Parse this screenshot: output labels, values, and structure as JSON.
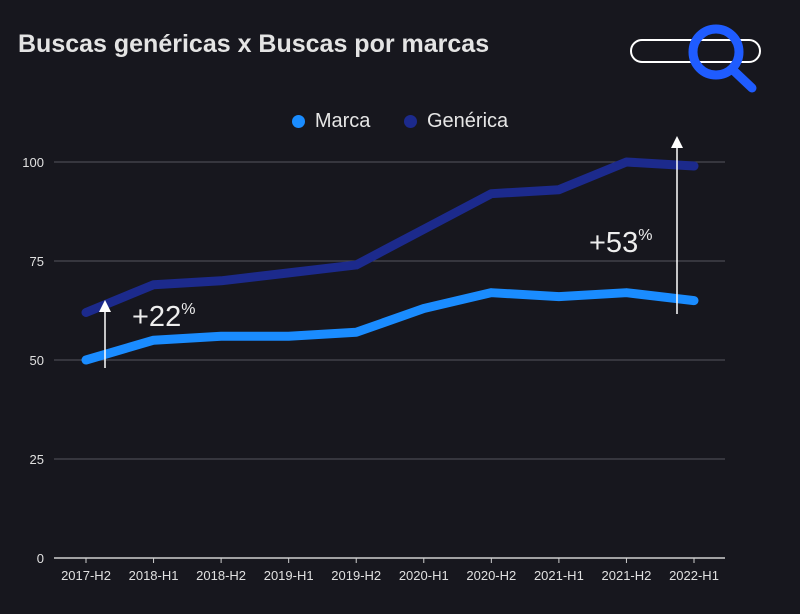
{
  "chart_data": {
    "type": "line",
    "title": "Buscas genéricas x Buscas por marcas",
    "categories": [
      "2017-H2",
      "2018-H1",
      "2018-H2",
      "2019-H1",
      "2019-H2",
      "2020-H1",
      "2020-H2",
      "2021-H1",
      "2021-H2",
      "2022-H1"
    ],
    "series": [
      {
        "name": "Marca",
        "color": "#1a8cff",
        "values": [
          50,
          55,
          56,
          56,
          57,
          63,
          67,
          66,
          67,
          65
        ]
      },
      {
        "name": "Genérica",
        "color": "#1c2a8c",
        "values": [
          62,
          69,
          70,
          72,
          74,
          83,
          92,
          93,
          100,
          99
        ]
      }
    ],
    "ylim": [
      0,
      100
    ],
    "yticks": [
      0,
      25,
      50,
      75,
      100
    ],
    "grid": true,
    "legend": "top-center",
    "annotations": [
      {
        "text": "+22",
        "sup": "%"
      },
      {
        "text": "+53",
        "sup": "%"
      }
    ],
    "icon": "search-icon"
  }
}
